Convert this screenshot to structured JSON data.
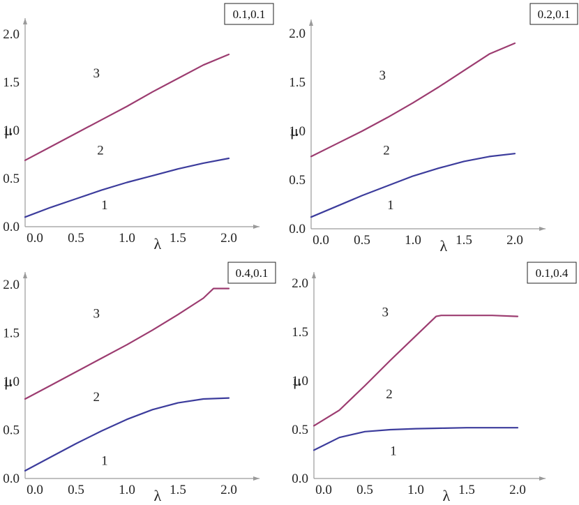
{
  "chart_data": [
    {
      "type": "line",
      "box_label": "0.1,0.1",
      "xlabel": "λ",
      "ylabel": "μ",
      "xlim": [
        0,
        2.2
      ],
      "ylim": [
        0,
        2.0
      ],
      "x_ticks": [
        "0.0",
        "0.5",
        "1.0",
        "1.5",
        "2.0"
      ],
      "y_ticks": [
        "0.0",
        "0.5",
        "1.0",
        "1.5",
        "2.0"
      ],
      "region_labels": [
        {
          "text": "1",
          "x": 0.78,
          "y": 0.18
        },
        {
          "text": "2",
          "x": 0.74,
          "y": 0.75
        },
        {
          "text": "3",
          "x": 0.7,
          "y": 1.55
        }
      ],
      "series": [
        {
          "color": "#3c3c9c",
          "x": [
            0,
            0.25,
            0.5,
            0.75,
            1.0,
            1.25,
            1.5,
            1.75,
            2.0
          ],
          "y": [
            0.1,
            0.2,
            0.29,
            0.38,
            0.46,
            0.53,
            0.6,
            0.66,
            0.71
          ]
        },
        {
          "color": "#9c3c70",
          "x": [
            0,
            0.25,
            0.5,
            0.75,
            1.0,
            1.25,
            1.5,
            1.75,
            2.0
          ],
          "y": [
            0.69,
            0.83,
            0.97,
            1.11,
            1.25,
            1.4,
            1.54,
            1.68,
            1.79
          ]
        }
      ]
    },
    {
      "type": "line",
      "box_label": "0.2,0.1",
      "xlabel": "λ",
      "ylabel": "μ",
      "xlim": [
        0,
        2.2
      ],
      "ylim": [
        0,
        2.0
      ],
      "x_ticks": [
        "0.0",
        "0.5",
        "1.0",
        "1.5",
        "2.0"
      ],
      "y_ticks": [
        "0.0",
        "0.5",
        "1.0",
        "1.5",
        "2.0"
      ],
      "region_labels": [
        {
          "text": "1",
          "x": 0.78,
          "y": 0.2
        },
        {
          "text": "2",
          "x": 0.74,
          "y": 0.76
        },
        {
          "text": "3",
          "x": 0.7,
          "y": 1.53
        }
      ],
      "series": [
        {
          "color": "#3c3c9c",
          "x": [
            0,
            0.25,
            0.5,
            0.75,
            1.0,
            1.25,
            1.5,
            1.75,
            2.0
          ],
          "y": [
            0.12,
            0.23,
            0.34,
            0.44,
            0.54,
            0.62,
            0.69,
            0.74,
            0.77
          ]
        },
        {
          "color": "#9c3c70",
          "x": [
            0,
            0.25,
            0.5,
            0.75,
            1.0,
            1.25,
            1.5,
            1.75,
            2.0
          ],
          "y": [
            0.74,
            0.87,
            1.0,
            1.14,
            1.29,
            1.45,
            1.62,
            1.79,
            1.9
          ]
        }
      ]
    },
    {
      "type": "line",
      "box_label": "0.4,0.1",
      "xlabel": "λ",
      "ylabel": "μ",
      "xlim": [
        0,
        2.2
      ],
      "ylim": [
        0,
        2.0
      ],
      "x_ticks": [
        "0.0",
        "0.5",
        "1.0",
        "1.5",
        "2.0"
      ],
      "y_ticks": [
        "0.0",
        "0.5",
        "1.0",
        "1.5",
        "2.0"
      ],
      "region_labels": [
        {
          "text": "1",
          "x": 0.78,
          "y": 0.14
        },
        {
          "text": "2",
          "x": 0.7,
          "y": 0.8
        },
        {
          "text": "3",
          "x": 0.7,
          "y": 1.66
        }
      ],
      "series": [
        {
          "color": "#3c3c9c",
          "x": [
            0,
            0.25,
            0.5,
            0.75,
            1.0,
            1.25,
            1.5,
            1.75,
            2.0
          ],
          "y": [
            0.08,
            0.22,
            0.36,
            0.49,
            0.61,
            0.71,
            0.78,
            0.82,
            0.83
          ]
        },
        {
          "color": "#9c3c70",
          "x": [
            0,
            0.25,
            0.5,
            0.75,
            1.0,
            1.25,
            1.5,
            1.75,
            1.85,
            2.0
          ],
          "y": [
            0.82,
            0.96,
            1.1,
            1.24,
            1.38,
            1.53,
            1.69,
            1.86,
            1.96,
            1.96
          ]
        }
      ]
    },
    {
      "type": "line",
      "box_label": "0.1,0.4",
      "xlabel": "λ",
      "ylabel": "μ",
      "xlim": [
        0,
        2.2
      ],
      "ylim": [
        0,
        2.0
      ],
      "x_ticks": [
        "0.0",
        "0.5",
        "1.0",
        "1.5",
        "2.0"
      ],
      "y_ticks": [
        "0.0",
        "0.5",
        "1.0",
        "1.5",
        "2.0"
      ],
      "region_labels": [
        {
          "text": "1",
          "x": 0.78,
          "y": 0.24
        },
        {
          "text": "2",
          "x": 0.74,
          "y": 0.82
        },
        {
          "text": "3",
          "x": 0.7,
          "y": 1.66
        }
      ],
      "series": [
        {
          "color": "#3c3c9c",
          "x": [
            0,
            0.25,
            0.5,
            0.75,
            1.0,
            1.25,
            1.5,
            1.75,
            2.0
          ],
          "y": [
            0.29,
            0.42,
            0.48,
            0.5,
            0.51,
            0.515,
            0.52,
            0.52,
            0.52
          ]
        },
        {
          "color": "#9c3c70",
          "x": [
            0,
            0.25,
            0.5,
            0.75,
            1.0,
            1.2,
            1.25,
            1.5,
            1.75,
            2.0
          ],
          "y": [
            0.54,
            0.7,
            0.95,
            1.21,
            1.46,
            1.66,
            1.67,
            1.67,
            1.67,
            1.66
          ]
        }
      ]
    }
  ]
}
